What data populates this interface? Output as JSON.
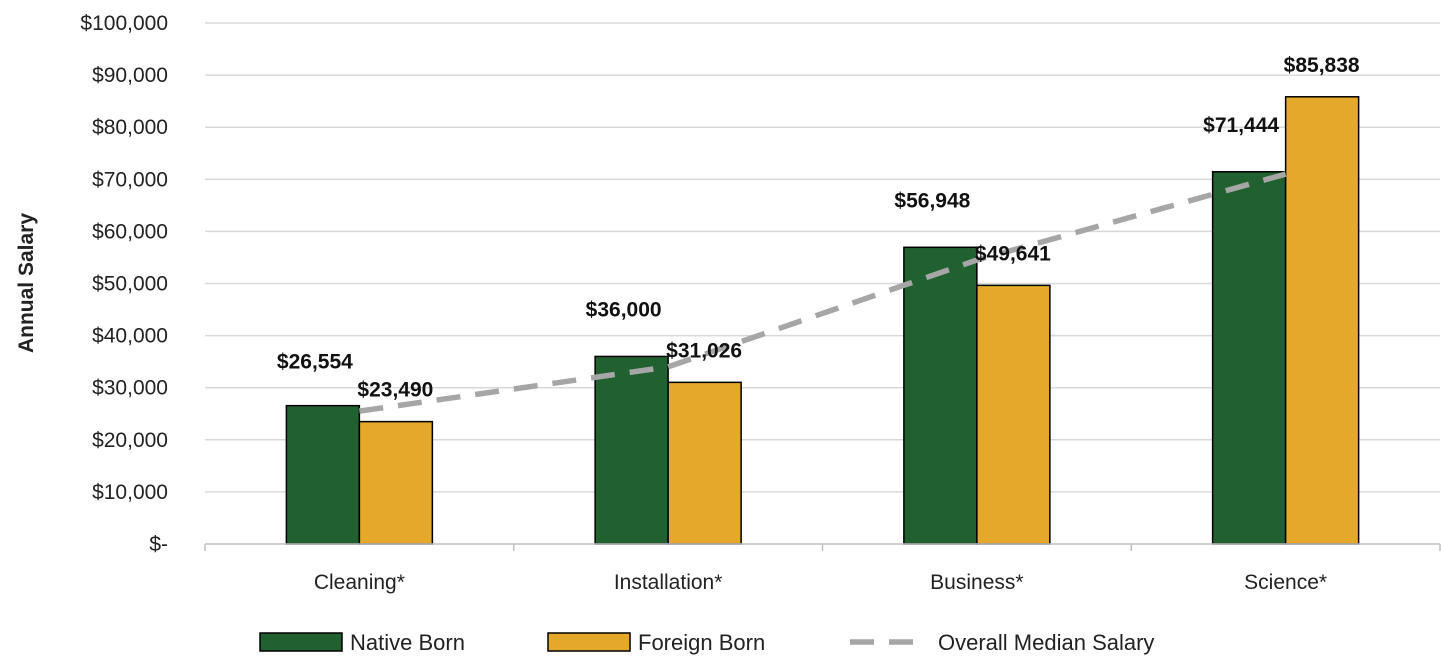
{
  "chart_data": {
    "type": "bar",
    "ylabel": "Annual Salary",
    "ylim": [
      0,
      100000
    ],
    "y_ticks": [
      {
        "value": 0,
        "label": "$-"
      },
      {
        "value": 10000,
        "label": "$10,000"
      },
      {
        "value": 20000,
        "label": "$20,000"
      },
      {
        "value": 30000,
        "label": "$30,000"
      },
      {
        "value": 40000,
        "label": "$40,000"
      },
      {
        "value": 50000,
        "label": "$50,000"
      },
      {
        "value": 60000,
        "label": "$60,000"
      },
      {
        "value": 70000,
        "label": "$70,000"
      },
      {
        "value": 80000,
        "label": "$80,000"
      },
      {
        "value": 90000,
        "label": "$90,000"
      },
      {
        "value": 100000,
        "label": "$100,000"
      }
    ],
    "categories": [
      "Cleaning*",
      "Installation*",
      "Business*",
      "Science*"
    ],
    "series": [
      {
        "name": "Native Born",
        "color": "#21602f",
        "values": [
          26554,
          36000,
          56948,
          71444
        ],
        "labels": [
          "$26,554",
          "$36,000",
          "$56,948",
          "$71,444"
        ]
      },
      {
        "name": "Foreign Born",
        "color": "#e4a82a",
        "values": [
          23490,
          31026,
          49641,
          85838
        ],
        "labels": [
          "$23,490",
          "$31,026",
          "$49,641",
          "$85,838"
        ]
      }
    ],
    "line_series": {
      "name": "Overall Median Salary",
      "color": "#a6a6a6",
      "style": "dashed",
      "values": [
        25500,
        34000,
        54500,
        71000
      ]
    },
    "grid": true,
    "legend_position": "bottom"
  }
}
